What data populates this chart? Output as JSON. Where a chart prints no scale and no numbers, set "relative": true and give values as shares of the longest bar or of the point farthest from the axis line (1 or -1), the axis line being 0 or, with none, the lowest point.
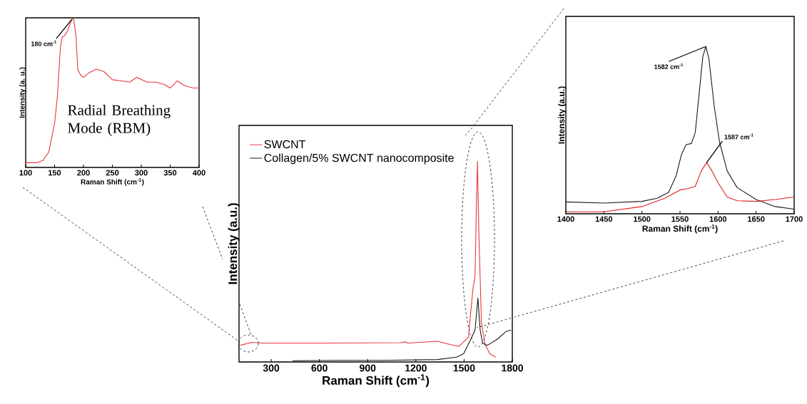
{
  "chart_data": [
    {
      "type": "line",
      "relative": true,
      "xlabel": "Raman Shift (cm$^{-1}$)",
      "ylabel": "Intensity (a. u.)",
      "xlim": [
        100,
        400
      ],
      "xticks": [
        100,
        150,
        200,
        250,
        300,
        350,
        400
      ],
      "tick_labels": "x",
      "annotations": [
        {
          "text": "180 cm$^{-1}$",
          "x": 180,
          "y": 1.0
        },
        "Radial Breathing Mode (RBM)"
      ],
      "series": [
        {
          "color": "#e8373c",
          "x": [
            100,
            120,
            130,
            140,
            150,
            155,
            160,
            163,
            167,
            172,
            180,
            183,
            187,
            190,
            195,
            200,
            210,
            222,
            235,
            250,
            265,
            280,
            292,
            310,
            325,
            340,
            350,
            362,
            375,
            390,
            400
          ],
          "values": [
            0.032,
            0.032,
            0.048,
            0.104,
            0.296,
            0.488,
            0.808,
            0.88,
            0.888,
            0.92,
            1.0,
            1.0,
            0.888,
            0.664,
            0.624,
            0.608,
            0.64,
            0.664,
            0.648,
            0.592,
            0.584,
            0.576,
            0.608,
            0.576,
            0.576,
            0.56,
            0.536,
            0.584,
            0.552,
            0.536,
            0.536
          ]
        }
      ]
    },
    {
      "type": "line",
      "relative": true,
      "xlabel": "Raman Shift (cm$^{-1}$)",
      "ylabel": "Intensity (a.u.)",
      "xlim": [
        100,
        1800
      ],
      "xticks": [
        300,
        600,
        900,
        1200,
        1500,
        1800
      ],
      "tick_labels": "x",
      "legend": "top left",
      "series": [
        {
          "name": "SWCNT",
          "color": "#e8373c",
          "x": [
            108,
            180,
            250,
            600,
            1100,
            1135,
            1150,
            1334,
            1400,
            1467,
            1527,
            1556,
            1568,
            1575,
            1583,
            1593,
            1608,
            1630,
            1660,
            1697
          ],
          "values": [
            0.083,
            0.098,
            0.094,
            0.094,
            0.096,
            0.1,
            0.094,
            0.103,
            0.09,
            0.077,
            0.124,
            0.372,
            0.425,
            0.72,
            1.0,
            0.608,
            0.195,
            0.089,
            0.041,
            0.024
          ]
        },
        {
          "name": "Collagen/5% SWCNT nanocomposite",
          "color": "#1a1a1a",
          "x": [
            433,
            700,
            1000,
            1334,
            1453,
            1497,
            1541,
            1568,
            1586,
            1600,
            1615,
            1645,
            1704,
            1763,
            1793
          ],
          "values": [
            0.006,
            0.008,
            0.008,
            0.012,
            0.024,
            0.041,
            0.112,
            0.159,
            0.319,
            0.159,
            0.094,
            0.083,
            0.112,
            0.153,
            0.159
          ]
        }
      ]
    },
    {
      "type": "line",
      "relative": true,
      "xlabel": "Raman Shift (cm$^{-1}$)",
      "ylabel": "Intensity (a.u.)",
      "xlim": [
        1400,
        1700
      ],
      "xticks": [
        1400,
        1450,
        1500,
        1550,
        1600,
        1650,
        1700
      ],
      "tick_labels": "x",
      "annotations": [
        {
          "text": "1582 cm$^{-1}$",
          "x": 1584,
          "y": 1.0
        },
        {
          "text": "1587 cm$^{-1}$",
          "x": 1585,
          "y": 0.306
        }
      ],
      "series": [
        {
          "color": "#1a1a1a",
          "x": [
            1400,
            1450,
            1500,
            1520,
            1535,
            1545,
            1552,
            1558,
            1565,
            1570,
            1575,
            1580,
            1584,
            1588,
            1595,
            1602,
            1612,
            1625,
            1650,
            1675,
            1700
          ],
          "values": [
            0.071,
            0.064,
            0.074,
            0.093,
            0.128,
            0.228,
            0.356,
            0.413,
            0.42,
            0.484,
            0.712,
            0.94,
            1.0,
            0.926,
            0.641,
            0.427,
            0.256,
            0.157,
            0.085,
            0.043,
            0.028
          ]
        },
        {
          "color": "#e02020",
          "x": [
            1400,
            1450,
            1500,
            1530,
            1550,
            1560,
            1570,
            1578,
            1585,
            1592,
            1600,
            1612,
            1625,
            1650,
            1675,
            1700
          ],
          "values": [
            0.012,
            0.012,
            0.043,
            0.093,
            0.142,
            0.15,
            0.164,
            0.256,
            0.306,
            0.256,
            0.185,
            0.1,
            0.078,
            0.074,
            0.085,
            0.1
          ]
        }
      ]
    }
  ]
}
